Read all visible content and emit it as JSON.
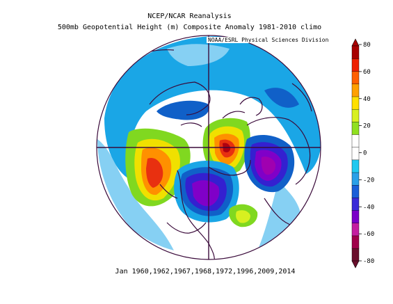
{
  "header": {
    "title_line1": "NCEP/NCAR Reanalysis",
    "title_line2": "500mb Geopotential Height (m) Composite Anomaly 1981-2010 climo",
    "credit": "NOAA/ESRL Physical Sciences Division"
  },
  "footer": {
    "dates": "Jan 1960,1962,1967,1968,1972,1996,2009,2014"
  },
  "colorbar": {
    "tick_labels": [
      "80",
      "60",
      "40",
      "20",
      "0",
      "-20",
      "-40",
      "-60",
      "-80"
    ],
    "colors": [
      "#6a0f2c",
      "#a0004a",
      "#c41ea0",
      "#7a00c8",
      "#3a2ad8",
      "#1a5fd8",
      "#2aa0e8",
      "#20c8f0",
      "#ffffff",
      "#ffffff",
      "#90e020",
      "#d8f020",
      "#ffe000",
      "#ffa000",
      "#ff6000",
      "#ee2000",
      "#a80000"
    ],
    "units": "m"
  },
  "map": {
    "projection": "polar-stereographic",
    "region": "Northern Hemisphere",
    "colors": {
      "ocean_ring": "#1aa6e6",
      "light_blue": "#86d0f3",
      "neg_20": "#1060c8",
      "neg_40": "#3420d0",
      "neg_60": "#8000c8",
      "neg_80": "#a000b0",
      "pos_20": "#80d820",
      "pos_40": "#f0e000",
      "pos_60": "#ff9000",
      "pos_80": "#e83010",
      "pos_max": "#b00010",
      "land_outline": "#3a0a3a"
    }
  }
}
